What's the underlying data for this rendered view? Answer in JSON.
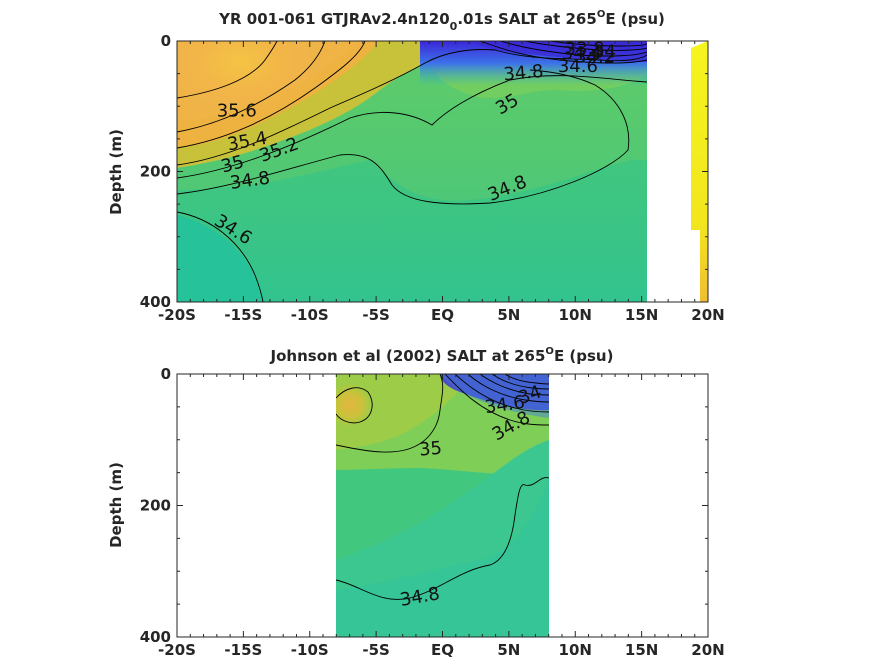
{
  "chart_data": [
    {
      "type": "heatmap",
      "title_main": "YR 001-061 GTJRAv2.4n120",
      "title_sub": "0",
      "title_rest": ".01s SALT at 265",
      "title_sup": "O",
      "title_end": "E (psu)",
      "ylabel": "Depth (m)",
      "xlim": [
        -20,
        20
      ],
      "ylim": [
        400,
        0
      ],
      "xticks": [
        -20,
        -15,
        -10,
        -5,
        0,
        5,
        10,
        15,
        20
      ],
      "xticklabels": [
        "-20S",
        "-15S",
        "-10S",
        "-5S",
        "EQ",
        "5N",
        "10N",
        "15N",
        "20N"
      ],
      "yticks": [
        0,
        200,
        400
      ],
      "yticklabels": [
        "0",
        "200",
        "400"
      ],
      "data_extent_lat": [
        -20,
        15.2
      ],
      "sidebar_extent_lat": [
        18.9,
        20
      ],
      "contour_labels": [
        {
          "text": "35.6",
          "lat": -15.5,
          "depth": 108,
          "angle": 0
        },
        {
          "text": "35.4",
          "lat": -14.7,
          "depth": 155,
          "angle": -10
        },
        {
          "text": "35.2",
          "lat": -12.3,
          "depth": 168,
          "angle": -20
        },
        {
          "text": "35",
          "lat": -15.8,
          "depth": 190,
          "angle": -15
        },
        {
          "text": "34.8",
          "lat": -14.5,
          "depth": 215,
          "angle": -8
        },
        {
          "text": "34.6",
          "lat": -15.8,
          "depth": 290,
          "angle": 32
        },
        {
          "text": "35",
          "lat": 4.9,
          "depth": 98,
          "angle": -30
        },
        {
          "text": "34.8",
          "lat": 6.1,
          "depth": 50,
          "angle": -5
        },
        {
          "text": "34.8",
          "lat": 4.9,
          "depth": 227,
          "angle": -22
        },
        {
          "text": "34.6",
          "lat": 10.2,
          "depth": 40,
          "angle": 0
        },
        {
          "text": "34.4",
          "lat": 10.5,
          "depth": 20,
          "angle": 0
        },
        {
          "text": "34.2",
          "lat": 11.5,
          "depth": 25,
          "angle": 0
        },
        {
          "text": "33.8",
          "lat": 10.7,
          "depth": 13,
          "angle": 0
        },
        {
          "text": "34",
          "lat": 12.2,
          "depth": 18,
          "angle": 0
        }
      ]
    },
    {
      "type": "heatmap",
      "title_main": "Johnson et al (2002) SALT at 265",
      "title_sup": "O",
      "title_end": "E (psu)",
      "ylabel": "Depth (m)",
      "xlim": [
        -20,
        20
      ],
      "ylim": [
        400,
        0
      ],
      "xticks": [
        -20,
        -15,
        -10,
        -5,
        0,
        5,
        10,
        15,
        20
      ],
      "xticklabels": [
        "-20S",
        "-15S",
        "-10S",
        "-5S",
        "EQ",
        "5N",
        "10N",
        "15N",
        "20N"
      ],
      "yticks": [
        0,
        200,
        400
      ],
      "yticklabels": [
        "0",
        "200",
        "400"
      ],
      "data_extent_lat": [
        -8,
        8.2
      ],
      "contour_labels": [
        {
          "text": "35",
          "lat": -0.9,
          "depth": 115,
          "angle": -5
        },
        {
          "text": "34.8",
          "lat": -1.7,
          "depth": 340,
          "angle": -10
        },
        {
          "text": "34.6",
          "lat": 4.7,
          "depth": 48,
          "angle": -8
        },
        {
          "text": "34",
          "lat": 6.6,
          "depth": 33,
          "angle": -20
        },
        {
          "text": "34.8",
          "lat": 5.2,
          "depth": 80,
          "angle": -30
        }
      ]
    }
  ]
}
